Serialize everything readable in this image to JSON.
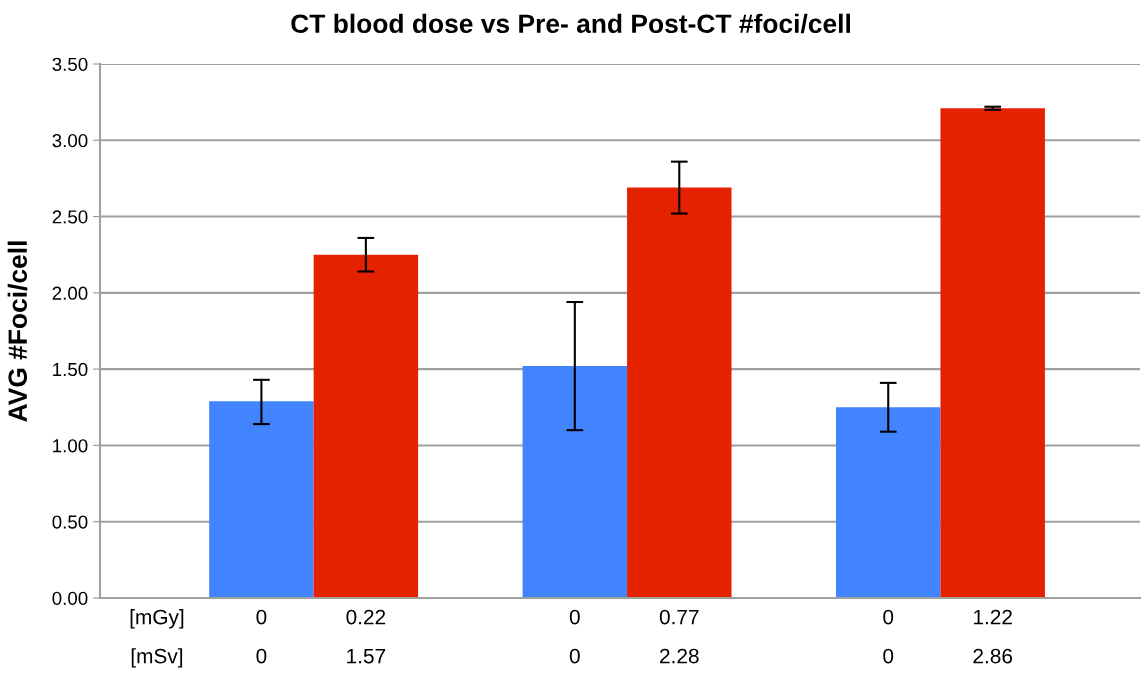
{
  "chart_data": {
    "type": "bar",
    "title": "CT blood dose vs Pre- and Post-CT #foci/cell",
    "ylabel": "AVG #Foci/cell",
    "categories": [
      "[mGy]\n[mSv]",
      "0\n0",
      "0.22\n1.57",
      null,
      "0\n0",
      "0.77\n2.28",
      null,
      "0\n0",
      "1.22\n2.86"
    ],
    "values": [
      null,
      1.29,
      2.25,
      null,
      1.52,
      2.69,
      null,
      1.25,
      3.21
    ],
    "colors": [
      "#4283fe",
      "#4283fe",
      "#e52200",
      "#4283fe",
      "#4283fe",
      "#e52200",
      "#4283fe",
      "#4283fe",
      "#e52200"
    ],
    "errors": [
      null,
      [
        1.14,
        1.43
      ],
      [
        2.14,
        2.36
      ],
      null,
      [
        1.1,
        1.94
      ],
      [
        2.52,
        2.86
      ],
      null,
      [
        1.09,
        1.41
      ],
      [
        3.2,
        3.22
      ]
    ],
    "ylim": [
      0,
      3.5
    ],
    "yticks": [
      {
        "value": 0,
        "label": "0.00"
      },
      {
        "value": 0.5,
        "label": "0.50"
      },
      {
        "value": 1,
        "label": "1.00"
      },
      {
        "value": 1.5,
        "label": "1.50"
      },
      {
        "value": 2,
        "label": "2.00"
      },
      {
        "value": 2.5,
        "label": "2.50"
      },
      {
        "value": 3,
        "label": "3.00"
      },
      {
        "value": 3.5,
        "label": "3.50"
      }
    ],
    "grid": "y"
  }
}
